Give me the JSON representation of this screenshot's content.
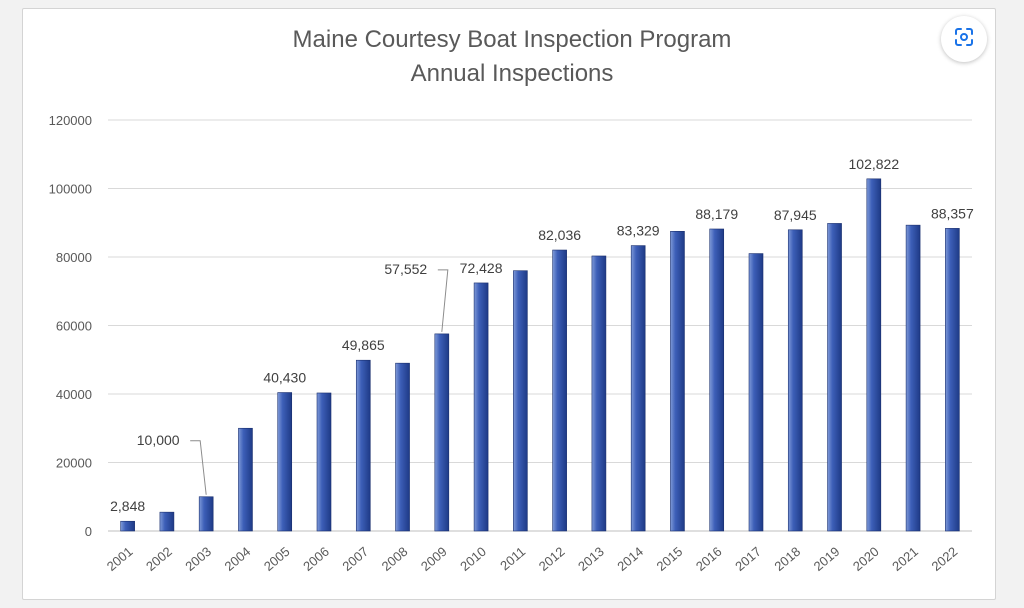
{
  "page": {
    "background": "#ffffff"
  },
  "lens_button": {
    "icon": "lens-search-icon",
    "accent": "#1a73e8"
  },
  "chart_data": {
    "type": "bar",
    "title": "Maine Courtesy Boat Inspection Program",
    "subtitle": "Annual Inspections",
    "xlabel": "",
    "ylabel": "",
    "ylim": [
      0,
      120000
    ],
    "yticks": [
      0,
      20000,
      40000,
      60000,
      80000,
      100000,
      120000
    ],
    "ytick_labels": [
      "0",
      "20000",
      "40000",
      "60000",
      "80000",
      "100000",
      "120000"
    ],
    "grid": true,
    "legend": "none",
    "bar_color": "#2f4f9f",
    "categories": [
      "2001",
      "2002",
      "2003",
      "2004",
      "2005",
      "2006",
      "2007",
      "2008",
      "2009",
      "2010",
      "2011",
      "2012",
      "2013",
      "2014",
      "2015",
      "2016",
      "2017",
      "2018",
      "2019",
      "2020",
      "2021",
      "2022"
    ],
    "values": [
      2848,
      5500,
      10000,
      30000,
      40430,
      40300,
      49865,
      49000,
      57552,
      72428,
      76000,
      82036,
      80300,
      83329,
      87500,
      88179,
      81000,
      87945,
      89800,
      102822,
      89300,
      88357
    ],
    "data_labels": [
      {
        "index": 0,
        "text": "2,848"
      },
      {
        "index": 2,
        "text": "10,000"
      },
      {
        "index": 4,
        "text": "40,430"
      },
      {
        "index": 6,
        "text": "49,865"
      },
      {
        "index": 8,
        "text": "57,552"
      },
      {
        "index": 9,
        "text": "72,428"
      },
      {
        "index": 11,
        "text": "82,036"
      },
      {
        "index": 13,
        "text": "83,329"
      },
      {
        "index": 15,
        "text": "88,179"
      },
      {
        "index": 17,
        "text": "87,945"
      },
      {
        "index": 19,
        "text": "102,822"
      },
      {
        "index": 21,
        "text": "88,357"
      }
    ]
  }
}
